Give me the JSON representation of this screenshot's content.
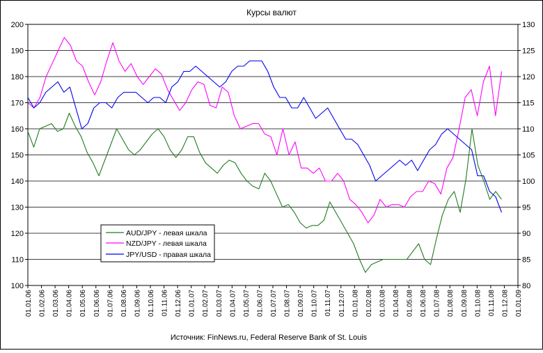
{
  "chart_data": {
    "type": "line",
    "title": "Курсы валют",
    "source": "Источник: FinNews.ru, Federal Reserve Bank of St. Louis",
    "grid": true,
    "legend_position": "lower-left",
    "x_ticks": [
      "01.01.06",
      "01.02.06",
      "01.03.06",
      "01.04.06",
      "01.05.06",
      "01.06.06",
      "01.07.06",
      "01.08.06",
      "01.09.06",
      "01.10.06",
      "01.11.06",
      "01.12.06",
      "01.01.07",
      "01.02.07",
      "01.03.07",
      "01.04.07",
      "01.05.07",
      "01.06.07",
      "01.07.07",
      "01.08.07",
      "01.09.07",
      "01.10.07",
      "01.11.07",
      "01.12.07",
      "01.01.08",
      "01.02.08",
      "01.03.08",
      "01.04.08",
      "01.05.08",
      "01.06.08",
      "01.07.08",
      "01.08.08",
      "01.09.08",
      "01.10.08",
      "01.11.08",
      "01.12.08",
      "01.01.09"
    ],
    "y_left": {
      "min": 100,
      "max": 200,
      "ticks": [
        "100",
        "110",
        "120",
        "130",
        "140",
        "150",
        "160",
        "170",
        "180",
        "190",
        "200"
      ]
    },
    "y_right": {
      "min": 80,
      "max": 130,
      "ticks": [
        "80",
        "85",
        "90",
        "95",
        "100",
        "105",
        "110",
        "115",
        "120",
        "125",
        "130"
      ]
    },
    "series": [
      {
        "name": "AUD/JPY - левая шкала",
        "axis": "left",
        "color": "#217a21",
        "values": [
          159,
          153,
          160,
          161,
          162,
          159,
          160,
          166,
          161,
          157,
          151,
          147,
          142,
          148,
          154,
          160,
          156,
          152,
          150,
          152,
          155,
          158,
          160,
          157,
          152,
          149,
          152,
          157,
          157,
          151,
          147,
          145,
          143,
          146,
          148,
          147,
          143,
          140,
          138,
          137,
          143,
          140,
          135,
          130,
          131,
          128,
          124,
          122,
          123,
          123,
          125,
          132,
          128,
          124,
          120,
          116,
          110,
          105,
          108,
          109,
          110,
          110,
          110,
          110,
          110,
          113,
          116,
          110,
          108,
          118,
          127,
          133,
          136,
          128,
          141,
          160,
          146,
          140,
          133,
          136,
          133
        ]
      },
      {
        "name": "NZD/JPY - левая шкала",
        "axis": "left",
        "color": "#ff00ff",
        "values": [
          170,
          168,
          172,
          180,
          185,
          190,
          195,
          192,
          186,
          184,
          178,
          173,
          178,
          186,
          193,
          186,
          182,
          185,
          180,
          177,
          180,
          183,
          181,
          175,
          171,
          167,
          170,
          175,
          178,
          177,
          169,
          168,
          176,
          174,
          165,
          160,
          161,
          162,
          162,
          158,
          157,
          150,
          160,
          150,
          155,
          145,
          145,
          143,
          145,
          140,
          140,
          143,
          140,
          133,
          131,
          128,
          124,
          127,
          133,
          130,
          131,
          131,
          130,
          134,
          136,
          136,
          140,
          139,
          135,
          145,
          149,
          160,
          172,
          175,
          165,
          178,
          184,
          165,
          182
        ]
      },
      {
        "name": "JPY/USD - правая шкала",
        "axis": "right",
        "color": "#0000ee",
        "values": [
          116,
          114,
          115,
          117,
          118,
          119,
          117,
          118,
          114,
          110,
          111,
          114,
          115,
          115,
          114,
          116,
          117,
          117,
          117,
          116,
          115,
          116,
          116,
          115,
          118,
          119,
          121,
          121,
          122,
          121,
          120,
          119,
          118,
          119,
          121,
          122,
          122,
          123,
          123,
          123,
          121,
          118,
          116,
          116,
          114,
          114,
          116,
          114,
          112,
          113,
          114,
          112,
          110,
          108,
          108,
          107,
          105,
          103,
          100,
          101,
          102,
          103,
          104,
          103,
          104,
          102,
          104,
          106,
          107,
          109,
          110,
          109,
          108,
          107,
          106,
          101,
          101,
          98,
          97,
          94
        ]
      }
    ]
  }
}
